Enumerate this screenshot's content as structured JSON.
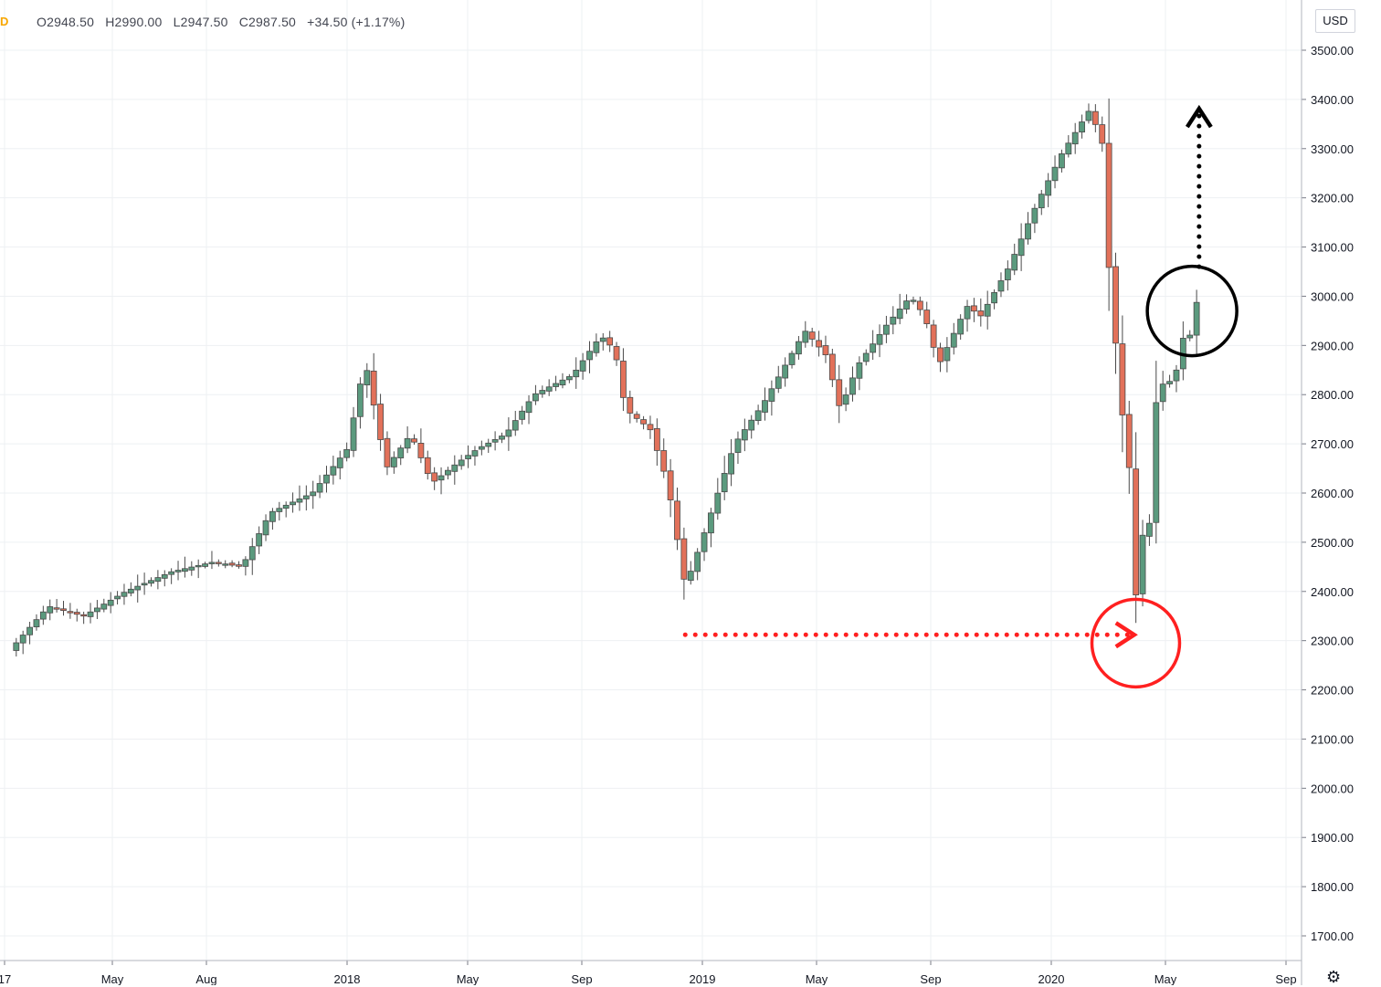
{
  "header": {
    "interval": "D",
    "open": "O2948.50",
    "high": "H2990.00",
    "low": "L2947.50",
    "close": "C2987.50",
    "change": "+34.50 (+1.17%)"
  },
  "currency_label": "USD",
  "settings_icon": "gear-icon",
  "colors": {
    "up": "#5b9a7e",
    "down": "#e2715a",
    "wick": "#4a4a4a",
    "grid": "#eef0f3",
    "red_annotation": "#ff2020",
    "black_annotation": "#000000"
  },
  "chart_data": {
    "type": "candlestick",
    "interval": "weekly",
    "currency": "USD",
    "ylim": [
      1650,
      3550
    ],
    "y_ticks": [
      "1700.00",
      "1800.00",
      "1900.00",
      "2000.00",
      "2100.00",
      "2200.00",
      "2300.00",
      "2400.00",
      "2500.00",
      "2600.00",
      "2700.00",
      "2800.00",
      "2900.00",
      "3000.00",
      "3100.00",
      "3200.00",
      "3300.00",
      "3400.00",
      "3500.00"
    ],
    "x_ticks": [
      "17",
      "May",
      "Aug",
      "2018",
      "May",
      "Sep",
      "2019",
      "May",
      "Sep",
      "2020",
      "May",
      "Sep"
    ],
    "grid": true,
    "last_price": 2987.5,
    "anchor_points": [
      [
        2017.04,
        2280
      ],
      [
        2017.15,
        2370
      ],
      [
        2017.25,
        2350
      ],
      [
        2017.37,
        2400
      ],
      [
        2017.5,
        2440
      ],
      [
        2017.62,
        2460
      ],
      [
        2017.7,
        2450
      ],
      [
        2017.78,
        2560
      ],
      [
        2017.9,
        2600
      ],
      [
        2018.0,
        2690
      ],
      [
        2018.05,
        2870
      ],
      [
        2018.11,
        2650
      ],
      [
        2018.18,
        2720
      ],
      [
        2018.24,
        2620
      ],
      [
        2018.31,
        2660
      ],
      [
        2018.37,
        2690
      ],
      [
        2018.45,
        2720
      ],
      [
        2018.53,
        2800
      ],
      [
        2018.64,
        2840
      ],
      [
        2018.72,
        2920
      ],
      [
        2018.76,
        2890
      ],
      [
        2018.79,
        2770
      ],
      [
        2018.86,
        2730
      ],
      [
        2018.91,
        2620
      ],
      [
        2018.96,
        2410
      ],
      [
        2019.0,
        2490
      ],
      [
        2019.1,
        2700
      ],
      [
        2019.18,
        2780
      ],
      [
        2019.3,
        2930
      ],
      [
        2019.36,
        2880
      ],
      [
        2019.4,
        2770
      ],
      [
        2019.45,
        2860
      ],
      [
        2019.53,
        2940
      ],
      [
        2019.6,
        3000
      ],
      [
        2019.64,
        2960
      ],
      [
        2019.68,
        2860
      ],
      [
        2019.76,
        2980
      ],
      [
        2019.8,
        2960
      ],
      [
        2019.88,
        3060
      ],
      [
        2019.96,
        3190
      ],
      [
        2020.03,
        3290
      ],
      [
        2020.11,
        3380
      ],
      [
        2020.13,
        3340
      ],
      [
        2020.15,
        3300
      ],
      [
        2020.17,
        2950
      ],
      [
        2020.19,
        2880
      ],
      [
        2020.21,
        2680
      ],
      [
        2020.23,
        2630
      ],
      [
        2020.245,
        2290
      ],
      [
        2020.26,
        2520
      ],
      [
        2020.275,
        2490
      ],
      [
        2020.3,
        2810
      ],
      [
        2020.33,
        2830
      ],
      [
        2020.35,
        2820
      ],
      [
        2020.37,
        2930
      ],
      [
        2020.385,
        2880
      ],
      [
        2020.4,
        2950
      ],
      [
        2020.42,
        2987.5
      ]
    ]
  },
  "annotations": [
    {
      "type": "dotted-arrow",
      "color": "red",
      "from": [
        2018.96,
        2312
      ],
      "to": [
        2020.22,
        2312
      ]
    },
    {
      "type": "circle",
      "color": "red",
      "center": [
        2020.24,
        2295
      ]
    },
    {
      "type": "circle",
      "color": "black",
      "center": [
        2020.4,
        2970
      ]
    },
    {
      "type": "dotted-arrow",
      "color": "black",
      "from": [
        2020.42,
        3060
      ],
      "to": [
        2020.42,
        3370
      ]
    }
  ]
}
